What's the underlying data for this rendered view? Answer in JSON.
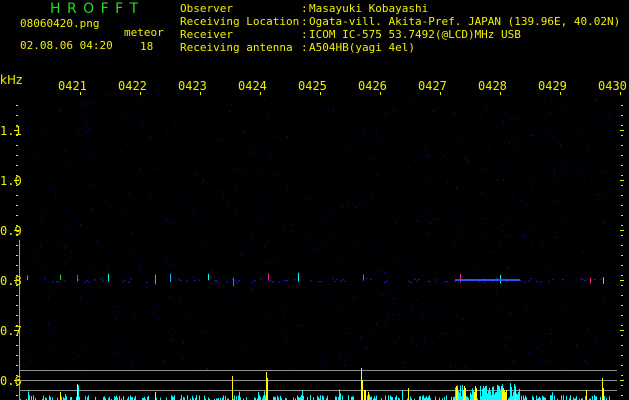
{
  "header": {
    "app_title": "H R O F F T",
    "filename": "08060420.png",
    "datetime": "02.08.06 04:20",
    "meteor_label": "meteor",
    "meteor_count": "18",
    "info": [
      {
        "label": "Observer",
        "value": "Masayuki Kobayashi"
      },
      {
        "label": "Receiving Location",
        "value": "Ogata-vill. Akita-Pref. JAPAN (139.96E, 40.02N)"
      },
      {
        "label": "Receiver",
        "value": "ICOM IC-575 53.7492(@LCD)MHz USB"
      },
      {
        "label": "Receiving antenna",
        "value": "A504HB(yagi 4el)"
      }
    ],
    "separator": ":"
  },
  "colors": {
    "text": "#f0f000",
    "title": "#22dd22",
    "background": "#000000",
    "histogram_low": "#00ffff",
    "histogram_high": "#ffff00",
    "grid": "#909090"
  },
  "chart_data": {
    "type": "heatmap",
    "ylabel": "kHz",
    "y_ticks": [
      "1.1",
      "1.0",
      "0.9",
      "0.8",
      "0.7",
      "0.6"
    ],
    "ylim": [
      0.56,
      1.22
    ],
    "x_ticks": [
      "0421",
      "0422",
      "0423",
      "0424",
      "0425",
      "0426",
      "0427",
      "0428",
      "0429",
      "0430"
    ],
    "signal_band_khz": 0.8,
    "grid": false
  }
}
